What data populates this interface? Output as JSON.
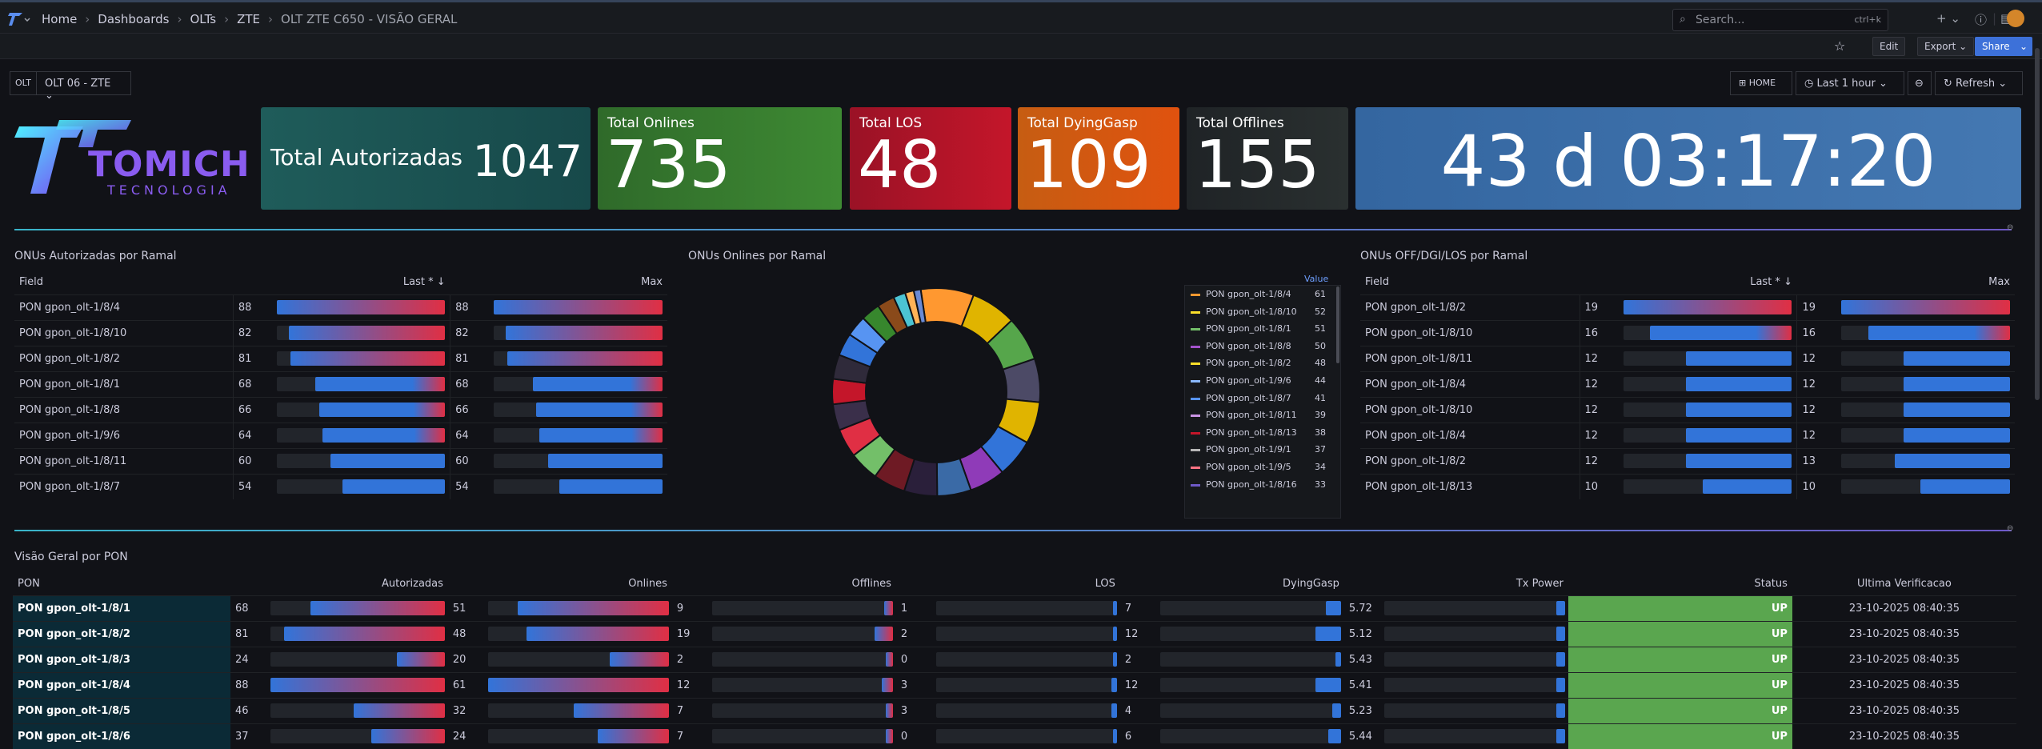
{
  "nav": {
    "breadcrumbs": [
      "Home",
      "Dashboards",
      "OLTs",
      "ZTE"
    ],
    "current_page": "OLT ZTE C650 - VISÃO GERAL",
    "search_placeholder": "Search...",
    "search_shortcut": "ctrl+k",
    "plus_label": "+"
  },
  "toolbar": {
    "edit": "Edit",
    "export": "Export",
    "share": "Share"
  },
  "variables": {
    "olt_label": "OLT",
    "olt_value": "OLT 06 - ZTE",
    "home": "HOME",
    "time_range": "Last 1 hour",
    "refresh": "Refresh"
  },
  "brand": {
    "name": "TOMICH",
    "sub": "TECNOLOGIA"
  },
  "stats": {
    "autorizadas_label": "Total Autorizadas",
    "autorizadas_value": "1047",
    "onlines_label": "Total Onlines",
    "onlines_value": "735",
    "los_label": "Total LOS",
    "los_value": "48",
    "dying_label": "Total DyingGasp",
    "dying_value": "109",
    "offlines_label": "Total Offlines",
    "offlines_value": "155",
    "uptime": "43 d 03:17:20"
  },
  "autorizadas_panel": {
    "title": "ONUs Autorizadas por Ramal",
    "headers": {
      "field": "Field",
      "last": "Last *",
      "max": "Max"
    },
    "rows": [
      {
        "field": "PON gpon_olt-1/8/4",
        "last": "88",
        "max": "88",
        "pct": 100
      },
      {
        "field": "PON gpon_olt-1/8/10",
        "last": "82",
        "max": "82",
        "pct": 93
      },
      {
        "field": "PON gpon_olt-1/8/2",
        "last": "81",
        "max": "81",
        "pct": 92
      },
      {
        "field": "PON gpon_olt-1/8/1",
        "last": "68",
        "max": "68",
        "pct": 77
      },
      {
        "field": "PON gpon_olt-1/8/8",
        "last": "66",
        "max": "66",
        "pct": 75
      },
      {
        "field": "PON gpon_olt-1/9/6",
        "last": "64",
        "max": "64",
        "pct": 73
      },
      {
        "field": "PON gpon_olt-1/8/11",
        "last": "60",
        "max": "60",
        "pct": 68
      },
      {
        "field": "PON gpon_olt-1/8/7",
        "last": "54",
        "max": "54",
        "pct": 61
      }
    ]
  },
  "onlines_panel": {
    "title": "ONUs Onlines por Ramal",
    "legend_header": "Value",
    "legend": [
      {
        "name": "PON gpon_olt-1/8/4",
        "value": "61",
        "color": "#ff9830"
      },
      {
        "name": "PON gpon_olt-1/8/10",
        "value": "52",
        "color": "#fade2a"
      },
      {
        "name": "PON gpon_olt-1/8/1",
        "value": "51",
        "color": "#73bf69"
      },
      {
        "name": "PON gpon_olt-1/8/8",
        "value": "50",
        "color": "#a352cc"
      },
      {
        "name": "PON gpon_olt-1/8/2",
        "value": "48",
        "color": "#fade2a"
      },
      {
        "name": "PON gpon_olt-1/9/6",
        "value": "44",
        "color": "#8ab8ff"
      },
      {
        "name": "PON gpon_olt-1/8/7",
        "value": "41",
        "color": "#5794f2"
      },
      {
        "name": "PON gpon_olt-1/8/11",
        "value": "39",
        "color": "#ca95e5"
      },
      {
        "name": "PON gpon_olt-1/8/13",
        "value": "38",
        "color": "#c4162a"
      },
      {
        "name": "PON gpon_olt-1/9/1",
        "value": "37",
        "color": "#b7b7b7"
      },
      {
        "name": "PON gpon_olt-1/9/5",
        "value": "34",
        "color": "#ff7383"
      },
      {
        "name": "PON gpon_olt-1/8/16",
        "value": "33",
        "color": "#6e59c7"
      }
    ]
  },
  "off_panel": {
    "title": "ONUs OFF/DGI/LOS por Ramal",
    "headers": {
      "field": "Field",
      "last": "Last *",
      "max": "Max"
    },
    "rows": [
      {
        "field": "PON gpon_olt-1/8/2",
        "last": "19",
        "max": "19",
        "pct": 100,
        "pct_max": 100
      },
      {
        "field": "PON gpon_olt-1/8/10",
        "last": "16",
        "max": "16",
        "pct": 84,
        "pct_max": 84
      },
      {
        "field": "PON gpon_olt-1/8/11",
        "last": "12",
        "max": "12",
        "pct": 63,
        "pct_max": 63
      },
      {
        "field": "PON gpon_olt-1/8/4",
        "last": "12",
        "max": "12",
        "pct": 63,
        "pct_max": 63
      },
      {
        "field": "PON gpon_olt-1/8/10",
        "last": "12",
        "max": "12",
        "pct": 63,
        "pct_max": 63
      },
      {
        "field": "PON gpon_olt-1/8/4",
        "last": "12",
        "max": "12",
        "pct": 63,
        "pct_max": 63
      },
      {
        "field": "PON gpon_olt-1/8/2",
        "last": "12",
        "max": "13",
        "pct": 63,
        "pct_max": 68
      },
      {
        "field": "PON gpon_olt-1/8/13",
        "last": "10",
        "max": "10",
        "pct": 53,
        "pct_max": 53
      }
    ]
  },
  "overview": {
    "title": "Visão Geral por PON",
    "headers": [
      "PON",
      "Autorizadas",
      "Onlines",
      "Offlines",
      "LOS",
      "DyingGasp",
      "Tx Power",
      "Status",
      "Ultima Verificacao"
    ],
    "rows": [
      {
        "pon": "PON gpon_olt-1/8/1",
        "aut": "68",
        "on": "51",
        "off": "9",
        "los": "1",
        "dg": "7",
        "tx": "5.72",
        "status": "UP",
        "ts": "23-10-2025 08:40:35"
      },
      {
        "pon": "PON gpon_olt-1/8/2",
        "aut": "81",
        "on": "48",
        "off": "19",
        "los": "2",
        "dg": "12",
        "tx": "5.12",
        "status": "UP",
        "ts": "23-10-2025 08:40:35"
      },
      {
        "pon": "PON gpon_olt-1/8/3",
        "aut": "24",
        "on": "20",
        "off": "2",
        "los": "0",
        "dg": "2",
        "tx": "5.43",
        "status": "UP",
        "ts": "23-10-2025 08:40:35"
      },
      {
        "pon": "PON gpon_olt-1/8/4",
        "aut": "88",
        "on": "61",
        "off": "12",
        "los": "3",
        "dg": "12",
        "tx": "5.41",
        "status": "UP",
        "ts": "23-10-2025 08:40:35"
      },
      {
        "pon": "PON gpon_olt-1/8/5",
        "aut": "46",
        "on": "32",
        "off": "7",
        "los": "3",
        "dg": "4",
        "tx": "5.23",
        "status": "UP",
        "ts": "23-10-2025 08:40:35"
      },
      {
        "pon": "PON gpon_olt-1/8/6",
        "aut": "37",
        "on": "24",
        "off": "7",
        "los": "0",
        "dg": "6",
        "tx": "5.44",
        "status": "UP",
        "ts": "23-10-2025 08:40:35"
      }
    ]
  },
  "donut_colors": [
    "#ff9830",
    "#e0b400",
    "#56a64b",
    "#4c4a66",
    "#e0b400",
    "#3274d9",
    "#8f3bb8",
    "#3a6aa6",
    "#2a1f3a",
    "#6e1a24",
    "#73bf69",
    "#e02f44",
    "#3a2f4a",
    "#c4162a",
    "#2f2a3a",
    "#3274d9",
    "#5794f2",
    "#37872d",
    "#8a4a1a",
    "#4cc4d4",
    "#ffb357",
    "#6a8ad4"
  ]
}
